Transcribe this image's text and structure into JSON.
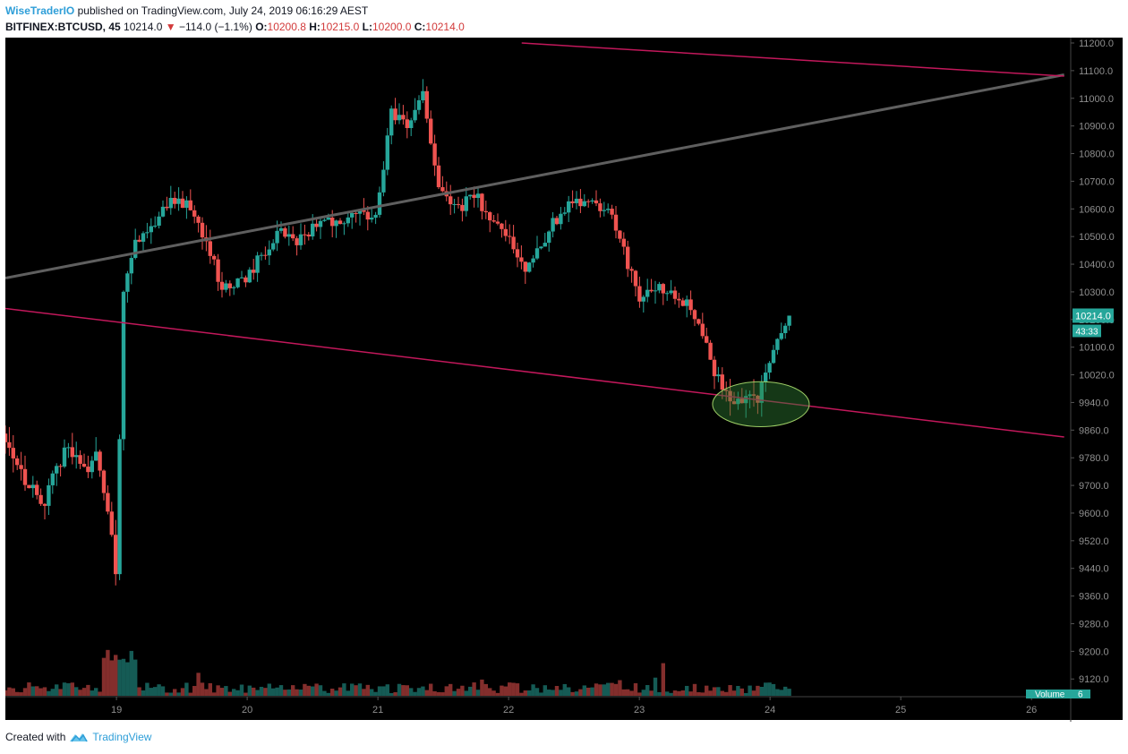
{
  "header": {
    "author": "WiseTraderIO",
    "published": " published on TradingView.com, July 24, 2019 06:16:29 AEST"
  },
  "ticker": {
    "symbol": "BITFINEX:BTCUSD, 45",
    "last": "10214.0",
    "change": "−114.0 (−1.1%)",
    "o_label": "O:",
    "o": "10200.8",
    "h_label": "H:",
    "h": "10215.0",
    "l_label": "L:",
    "l": "10200.0",
    "c_label": "C:",
    "c": "10214.0"
  },
  "chart_data": {
    "type": "candlestick",
    "x_ticks": [
      "19",
      "20",
      "21",
      "22",
      "23",
      "24",
      "25",
      "26"
    ],
    "y_ticks": [
      11200,
      11100,
      11000,
      10900,
      10800,
      10700,
      10600,
      10500,
      10400,
      10300,
      10200,
      10100,
      10020,
      9940,
      9860,
      9780,
      9700,
      9600,
      9520,
      9440,
      9360,
      9280,
      9200,
      9120
    ],
    "y_tick_labels": [
      "11200.0",
      "11100.0",
      "11000.0",
      "10900.0",
      "10800.0",
      "10700.0",
      "10600.0",
      "10500.0",
      "10400.0",
      "10300.0",
      "10200.0",
      "10100.0",
      "10020.0",
      "9940.0",
      "9860.0",
      "9780.0",
      "9700.0",
      "9600.0",
      "9520.0",
      "9440.0",
      "9360.0",
      "9280.0",
      "9200.0",
      "9120.0"
    ],
    "x_range": [
      18.15,
      26.3
    ],
    "current_price": "10214.0",
    "countdown": "43:33",
    "volume_label": "Volume",
    "volume_value": "6",
    "colors": {
      "up": "#26a69a",
      "down": "#ef5350",
      "background": "#000000",
      "trend_gray": "#5f5f5f",
      "trend_red": "#c2185b",
      "highlight": "#2e7d32"
    },
    "anchors": [
      [
        18.15,
        9850
      ],
      [
        18.3,
        9720
      ],
      [
        18.45,
        9640
      ],
      [
        18.6,
        9810
      ],
      [
        18.75,
        9750
      ],
      [
        18.85,
        9790
      ],
      [
        18.95,
        9580
      ],
      [
        19.0,
        9420
      ],
      [
        19.05,
        10300
      ],
      [
        19.15,
        10490
      ],
      [
        19.25,
        10530
      ],
      [
        19.4,
        10630
      ],
      [
        19.55,
        10610
      ],
      [
        19.7,
        10480
      ],
      [
        19.8,
        10310
      ],
      [
        19.95,
        10330
      ],
      [
        20.1,
        10420
      ],
      [
        20.25,
        10510
      ],
      [
        20.4,
        10480
      ],
      [
        20.55,
        10570
      ],
      [
        20.7,
        10540
      ],
      [
        20.85,
        10570
      ],
      [
        21.0,
        10590
      ],
      [
        21.1,
        10940
      ],
      [
        21.25,
        10910
      ],
      [
        21.35,
        11020
      ],
      [
        21.45,
        10710
      ],
      [
        21.6,
        10600
      ],
      [
        21.75,
        10650
      ],
      [
        21.85,
        10560
      ],
      [
        22.0,
        10490
      ],
      [
        22.15,
        10380
      ],
      [
        22.3,
        10520
      ],
      [
        22.45,
        10620
      ],
      [
        22.6,
        10640
      ],
      [
        22.75,
        10600
      ],
      [
        22.85,
        10510
      ],
      [
        23.0,
        10250
      ],
      [
        23.1,
        10330
      ],
      [
        23.25,
        10310
      ],
      [
        23.4,
        10240
      ],
      [
        23.5,
        10150
      ],
      [
        23.6,
        10000
      ],
      [
        23.7,
        9940
      ],
      [
        23.8,
        9960
      ],
      [
        23.9,
        9950
      ],
      [
        24.0,
        10060
      ],
      [
        24.1,
        10180
      ],
      [
        24.15,
        10214
      ]
    ],
    "trendlines": [
      {
        "name": "gray-trendline",
        "from": [
          18.15,
          10350
        ],
        "to": [
          26.25,
          11085
        ],
        "color": "#5f5f5f"
      },
      {
        "name": "upper-red-trendline",
        "from": [
          22.1,
          11200
        ],
        "to": [
          26.25,
          11080
        ],
        "color": "#c2185b"
      },
      {
        "name": "lower-red-trendline",
        "from": [
          18.15,
          10240
        ],
        "to": [
          26.25,
          9840
        ],
        "color": "#c2185b"
      }
    ],
    "highlight_ellipse": {
      "center": [
        23.93,
        9935
      ],
      "rx_days": 0.37,
      "ry_price": 65
    }
  },
  "footer": {
    "created_with": "Created with",
    "brand": "TradingView"
  }
}
